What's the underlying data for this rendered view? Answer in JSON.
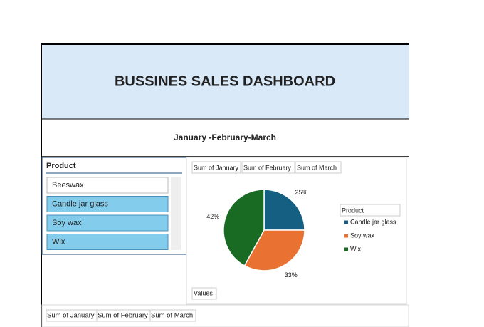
{
  "header": {
    "title": "BUSSINES SALES DASHBOARD",
    "subtitle": "January -February-March"
  },
  "slicer": {
    "title": "Product",
    "items": [
      "Beeswax",
      "Candle jar glass",
      "Soy wax",
      "Wix"
    ]
  },
  "chart_data": {
    "type": "pie",
    "field_buttons": [
      "Sum of January",
      "Sum of February",
      "Sum of March"
    ],
    "legend_title": "Product",
    "categories": [
      "Candle jar glass",
      "Soy wax",
      "Wix"
    ],
    "values": [
      25,
      33,
      42
    ],
    "value_labels": [
      "25%",
      "33%",
      "42%"
    ],
    "colors": [
      "#156082",
      "#e97132",
      "#196b24"
    ],
    "axis_button": "Values"
  },
  "bottom_fields": [
    "Sum of January",
    "Sum of February",
    "Sum of March"
  ]
}
